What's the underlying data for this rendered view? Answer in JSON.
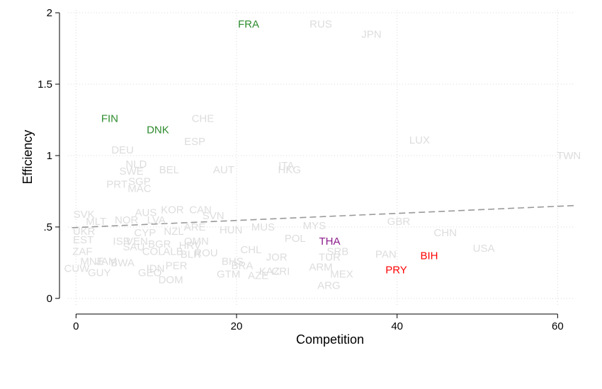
{
  "chart_data": {
    "type": "scatter",
    "xlabel": "Competition",
    "ylabel": "Efficiency",
    "xlim": [
      -1,
      62
    ],
    "ylim": [
      -0.05,
      2.02
    ],
    "x_ticks": [
      0,
      20,
      40,
      60
    ],
    "x_tick_labels": [
      "0",
      "20",
      "40",
      "60"
    ],
    "y_ticks": [
      0,
      0.5,
      1,
      1.5,
      2
    ],
    "y_tick_labels": [
      "0",
      ".5",
      "1",
      "1.5",
      "2"
    ],
    "grid": true,
    "fit_line": {
      "style": "dashed",
      "color": "#999999",
      "x": [
        -0.5,
        62
      ],
      "y": [
        0.495,
        0.65
      ]
    },
    "colors": {
      "default": "#dddddd",
      "green": "#2e8b2e",
      "purple": "#8b1a8b",
      "red": "#ff0000"
    },
    "points": [
      {
        "label": "FRA",
        "x": 21.5,
        "y": 1.92,
        "color": "green"
      },
      {
        "label": "RUS",
        "x": 30.5,
        "y": 1.92,
        "color": "default"
      },
      {
        "label": "JPN",
        "x": 36.8,
        "y": 1.85,
        "color": "default"
      },
      {
        "label": "FIN",
        "x": 4.2,
        "y": 1.26,
        "color": "green"
      },
      {
        "label": "DNK",
        "x": 10.2,
        "y": 1.18,
        "color": "green"
      },
      {
        "label": "CHE",
        "x": 15.8,
        "y": 1.26,
        "color": "default"
      },
      {
        "label": "ESP",
        "x": 14.8,
        "y": 1.1,
        "color": "default"
      },
      {
        "label": "LUX",
        "x": 42.8,
        "y": 1.11,
        "color": "default"
      },
      {
        "label": "TWN",
        "x": 61.4,
        "y": 1.0,
        "color": "default"
      },
      {
        "label": "DEU",
        "x": 5.8,
        "y": 1.04,
        "color": "default"
      },
      {
        "label": "NLD",
        "x": 7.5,
        "y": 0.94,
        "color": "default"
      },
      {
        "label": "SWE",
        "x": 6.9,
        "y": 0.89,
        "color": "default"
      },
      {
        "label": "BEL",
        "x": 11.6,
        "y": 0.9,
        "color": "default"
      },
      {
        "label": "AUT",
        "x": 18.4,
        "y": 0.9,
        "color": "default"
      },
      {
        "label": "ITA",
        "x": 26.2,
        "y": 0.93,
        "color": "default"
      },
      {
        "label": "HKG",
        "x": 26.6,
        "y": 0.9,
        "color": "default"
      },
      {
        "label": "PRT",
        "x": 5.1,
        "y": 0.8,
        "color": "default"
      },
      {
        "label": "SGP",
        "x": 7.9,
        "y": 0.82,
        "color": "default"
      },
      {
        "label": "MAC",
        "x": 7.9,
        "y": 0.77,
        "color": "default"
      },
      {
        "label": "SVK",
        "x": 1.0,
        "y": 0.59,
        "color": "default"
      },
      {
        "label": "AUS",
        "x": 8.7,
        "y": 0.6,
        "color": "default"
      },
      {
        "label": "KOR",
        "x": 12.0,
        "y": 0.62,
        "color": "default"
      },
      {
        "label": "CAN",
        "x": 15.5,
        "y": 0.62,
        "color": "default"
      },
      {
        "label": "SVN",
        "x": 17.1,
        "y": 0.58,
        "color": "default"
      },
      {
        "label": "MLT",
        "x": 2.5,
        "y": 0.54,
        "color": "default"
      },
      {
        "label": "NOR",
        "x": 6.3,
        "y": 0.55,
        "color": "default"
      },
      {
        "label": "LVA",
        "x": 10.0,
        "y": 0.55,
        "color": "default"
      },
      {
        "label": "ARE",
        "x": 14.8,
        "y": 0.5,
        "color": "default"
      },
      {
        "label": "HUN",
        "x": 19.3,
        "y": 0.48,
        "color": "default"
      },
      {
        "label": "MUS",
        "x": 23.3,
        "y": 0.5,
        "color": "default"
      },
      {
        "label": "MYS",
        "x": 29.7,
        "y": 0.51,
        "color": "default"
      },
      {
        "label": "GBR",
        "x": 40.2,
        "y": 0.54,
        "color": "default"
      },
      {
        "label": "CHN",
        "x": 46.0,
        "y": 0.46,
        "color": "default"
      },
      {
        "label": "UKR",
        "x": 1.0,
        "y": 0.47,
        "color": "default"
      },
      {
        "label": "NZL",
        "x": 12.2,
        "y": 0.47,
        "color": "default"
      },
      {
        "label": "CYP",
        "x": 8.6,
        "y": 0.46,
        "color": "default"
      },
      {
        "label": "POL",
        "x": 27.3,
        "y": 0.42,
        "color": "default"
      },
      {
        "label": "EST",
        "x": 0.9,
        "y": 0.41,
        "color": "default"
      },
      {
        "label": "ISR",
        "x": 5.7,
        "y": 0.4,
        "color": "default"
      },
      {
        "label": "VEN",
        "x": 7.6,
        "y": 0.4,
        "color": "default"
      },
      {
        "label": "OMN",
        "x": 15.0,
        "y": 0.4,
        "color": "default"
      },
      {
        "label": "THA",
        "x": 31.6,
        "y": 0.4,
        "color": "purple"
      },
      {
        "label": "BGR",
        "x": 10.4,
        "y": 0.38,
        "color": "default"
      },
      {
        "label": "SAU",
        "x": 7.2,
        "y": 0.36,
        "color": "default"
      },
      {
        "label": "HRV",
        "x": 14.2,
        "y": 0.37,
        "color": "default"
      },
      {
        "label": "USA",
        "x": 50.8,
        "y": 0.35,
        "color": "default"
      },
      {
        "label": "CHL",
        "x": 21.8,
        "y": 0.34,
        "color": "default"
      },
      {
        "label": "SRB",
        "x": 32.6,
        "y": 0.33,
        "color": "default"
      },
      {
        "label": "ZAF",
        "x": 0.8,
        "y": 0.33,
        "color": "default"
      },
      {
        "label": "COL",
        "x": 9.6,
        "y": 0.33,
        "color": "default"
      },
      {
        "label": "ALB",
        "x": 12.1,
        "y": 0.33,
        "color": "default"
      },
      {
        "label": "BLR",
        "x": 14.3,
        "y": 0.31,
        "color": "default"
      },
      {
        "label": "ROU",
        "x": 16.2,
        "y": 0.32,
        "color": "default"
      },
      {
        "label": "PAN",
        "x": 38.6,
        "y": 0.31,
        "color": "default"
      },
      {
        "label": "BIH",
        "x": 44.0,
        "y": 0.3,
        "color": "red"
      },
      {
        "label": "JOR",
        "x": 25.0,
        "y": 0.29,
        "color": "default"
      },
      {
        "label": "TUR",
        "x": 31.6,
        "y": 0.29,
        "color": "default"
      },
      {
        "label": "BHS",
        "x": 19.5,
        "y": 0.26,
        "color": "default"
      },
      {
        "label": "MNE",
        "x": 2.0,
        "y": 0.26,
        "color": "default"
      },
      {
        "label": "JAM",
        "x": 3.8,
        "y": 0.26,
        "color": "default"
      },
      {
        "label": "BWA",
        "x": 5.8,
        "y": 0.25,
        "color": "default"
      },
      {
        "label": "PER",
        "x": 12.5,
        "y": 0.23,
        "color": "default"
      },
      {
        "label": "BRA",
        "x": 20.7,
        "y": 0.23,
        "color": "default"
      },
      {
        "label": "ARM",
        "x": 30.5,
        "y": 0.22,
        "color": "default"
      },
      {
        "label": "PRY",
        "x": 39.9,
        "y": 0.2,
        "color": "red"
      },
      {
        "label": "CUW",
        "x": 0.1,
        "y": 0.21,
        "color": "default"
      },
      {
        "label": "IDN",
        "x": 9.9,
        "y": 0.21,
        "color": "default"
      },
      {
        "label": "KAZ",
        "x": 24.1,
        "y": 0.19,
        "color": "default"
      },
      {
        "label": "CRI",
        "x": 25.5,
        "y": 0.19,
        "color": "default"
      },
      {
        "label": "GUY",
        "x": 2.9,
        "y": 0.18,
        "color": "default"
      },
      {
        "label": "GEO",
        "x": 9.2,
        "y": 0.18,
        "color": "default"
      },
      {
        "label": "GTM",
        "x": 19.0,
        "y": 0.17,
        "color": "default"
      },
      {
        "label": "AZE",
        "x": 22.7,
        "y": 0.16,
        "color": "default"
      },
      {
        "label": "MEX",
        "x": 33.1,
        "y": 0.17,
        "color": "default"
      },
      {
        "label": "DOM",
        "x": 11.8,
        "y": 0.13,
        "color": "default"
      },
      {
        "label": "ARG",
        "x": 31.5,
        "y": 0.09,
        "color": "default"
      }
    ]
  }
}
